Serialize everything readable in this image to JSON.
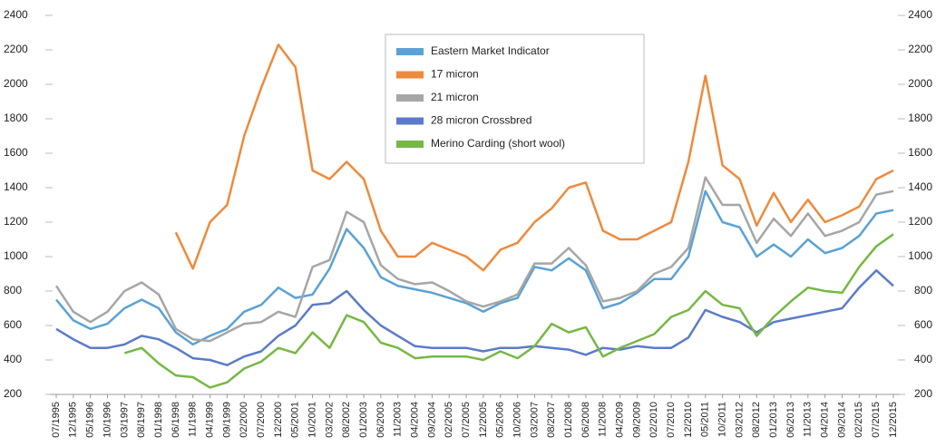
{
  "chart_data": {
    "type": "line",
    "categories": [
      "07/1995",
      "12/1995",
      "05/1996",
      "10/1996",
      "03/1997",
      "08/1997",
      "01/1998",
      "06/1998",
      "11/1998",
      "04/1999",
      "09/1999",
      "02/2000",
      "07/2000",
      "12/2000",
      "05/2001",
      "10/2001",
      "03/2002",
      "08/2002",
      "01/2003",
      "06/2003",
      "11/2003",
      "04/2004",
      "09/2004",
      "02/2005",
      "07/2005",
      "12/2005",
      "05/2006",
      "10/2006",
      "03/2007",
      "08/2007",
      "01/2008",
      "06/2008",
      "11/2008",
      "04/2009",
      "09/2009",
      "02/2010",
      "07/2010",
      "12/2010",
      "05/2011",
      "10/2011",
      "03/2012",
      "08/2012",
      "01/2013",
      "06/2013",
      "11/2013",
      "04/2014",
      "09/2014",
      "02/2015",
      "07/2015",
      "12/2015"
    ],
    "series": [
      {
        "name": "Eastern Market Indicator",
        "color": "#5aa2d4",
        "values": [
          750,
          630,
          580,
          610,
          700,
          750,
          700,
          560,
          490,
          540,
          580,
          680,
          720,
          820,
          760,
          780,
          930,
          1160,
          1050,
          880,
          830,
          810,
          790,
          760,
          730,
          680,
          730,
          760,
          940,
          920,
          990,
          920,
          700,
          730,
          790,
          870,
          870,
          1000,
          1380,
          1200,
          1170,
          1000,
          1070,
          1000,
          1100,
          1020,
          1050,
          1120,
          1250,
          1270
        ]
      },
      {
        "name": "17 micron",
        "color": "#ee8a3c",
        "values": [
          null,
          null,
          null,
          null,
          null,
          null,
          null,
          1140,
          930,
          1200,
          1300,
          1700,
          1980,
          2230,
          2100,
          1500,
          1450,
          1550,
          1450,
          1150,
          1000,
          1000,
          1080,
          1040,
          1000,
          920,
          1040,
          1080,
          1200,
          1280,
          1400,
          1430,
          1150,
          1100,
          1100,
          1150,
          1200,
          1550,
          2050,
          1530,
          1450,
          1180,
          1370,
          1200,
          1330,
          1200,
          1240,
          1290,
          1450,
          1500
        ]
      },
      {
        "name": "21 micron",
        "color": "#a6a6a6",
        "values": [
          830,
          680,
          620,
          680,
          800,
          850,
          780,
          580,
          520,
          510,
          560,
          610,
          620,
          680,
          650,
          940,
          980,
          1260,
          1200,
          950,
          870,
          840,
          850,
          800,
          740,
          710,
          740,
          780,
          960,
          960,
          1050,
          950,
          740,
          760,
          800,
          900,
          940,
          1050,
          1460,
          1300,
          1300,
          1080,
          1220,
          1120,
          1250,
          1120,
          1150,
          1200,
          1360,
          1380
        ]
      },
      {
        "name": "28 micron Crossbred",
        "color": "#5b7bc9",
        "values": [
          580,
          520,
          470,
          470,
          490,
          540,
          520,
          470,
          410,
          400,
          370,
          420,
          450,
          540,
          600,
          720,
          730,
          800,
          690,
          600,
          540,
          480,
          470,
          470,
          470,
          450,
          470,
          470,
          480,
          470,
          460,
          430,
          470,
          460,
          480,
          470,
          470,
          530,
          690,
          650,
          620,
          560,
          620,
          640,
          660,
          680,
          700,
          820,
          920,
          830
        ]
      },
      {
        "name": "Merino Carding (short wool)",
        "color": "#76b843",
        "values": [
          null,
          null,
          null,
          null,
          440,
          470,
          380,
          310,
          300,
          240,
          270,
          350,
          390,
          470,
          440,
          560,
          470,
          660,
          620,
          500,
          470,
          410,
          420,
          420,
          420,
          400,
          450,
          410,
          480,
          610,
          560,
          590,
          420,
          470,
          510,
          550,
          650,
          690,
          800,
          720,
          700,
          540,
          650,
          740,
          820,
          800,
          790,
          940,
          1060,
          1130
        ]
      }
    ],
    "ylim": [
      200,
      2400
    ],
    "yticks": [
      200,
      400,
      600,
      800,
      1000,
      1200,
      1400,
      1600,
      1800,
      2000,
      2200,
      2400
    ],
    "y2lim": [
      200,
      2400
    ],
    "y2ticks": [
      200,
      400,
      600,
      800,
      1000,
      1200,
      1400,
      1600,
      1800,
      2000,
      2200,
      2400
    ],
    "legend": "top-center"
  }
}
